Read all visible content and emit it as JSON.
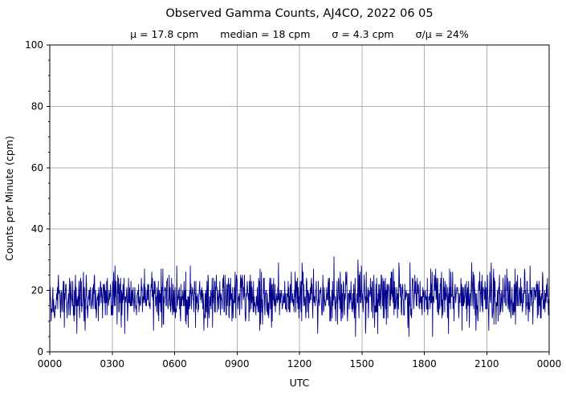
{
  "figure": {
    "title": "Observed Gamma Counts, AJ4CO, 2022 06 05",
    "stats": [
      "μ = 17.8 cpm",
      "median = 18 cpm",
      "σ = 4.3 cpm",
      "σ/μ = 24%"
    ]
  },
  "axes": {
    "xlabel": "UTC",
    "ylabel": "Counts per Minute (cpm)"
  },
  "colors": {
    "line": "#00008b",
    "grid": "#b0b0b0",
    "spine": "#000000",
    "text": "#000000",
    "background": "#ffffff"
  },
  "chart_data": {
    "type": "line",
    "title": "Observed Gamma Counts, AJ4CO, 2022 06 05",
    "subtitle": "μ = 17.8 cpm   median = 18 cpm   σ = 4.3 cpm   σ/μ = 24%",
    "xlabel": "UTC",
    "ylabel": "Counts per Minute (cpm)",
    "xlim_minutes": [
      0,
      1440
    ],
    "ylim": [
      0,
      100
    ],
    "x_major_ticks_minutes": [
      0,
      180,
      360,
      540,
      720,
      900,
      1080,
      1260,
      1440
    ],
    "x_tick_labels": [
      "0000",
      "0300",
      "0600",
      "0900",
      "1200",
      "1500",
      "1800",
      "2100",
      "0000"
    ],
    "y_major_ticks": [
      0,
      20,
      40,
      60,
      80,
      100
    ],
    "y_minor_step": 5,
    "grid": true,
    "legend": "none",
    "series": [
      {
        "name": "observed gamma counts",
        "sampling": "1 sample per minute over 24 h UTC",
        "n_points": 1440,
        "mean_cpm": 17.8,
        "median_cpm": 18,
        "sigma_cpm": 4.3,
        "sigma_over_mean_pct": 24,
        "min_cpm": 5,
        "max_cpm": 36,
        "integer_counts": true,
        "distribution": "poisson-like noise around mean",
        "color": "#00008b",
        "seed": 20220605
      }
    ]
  }
}
